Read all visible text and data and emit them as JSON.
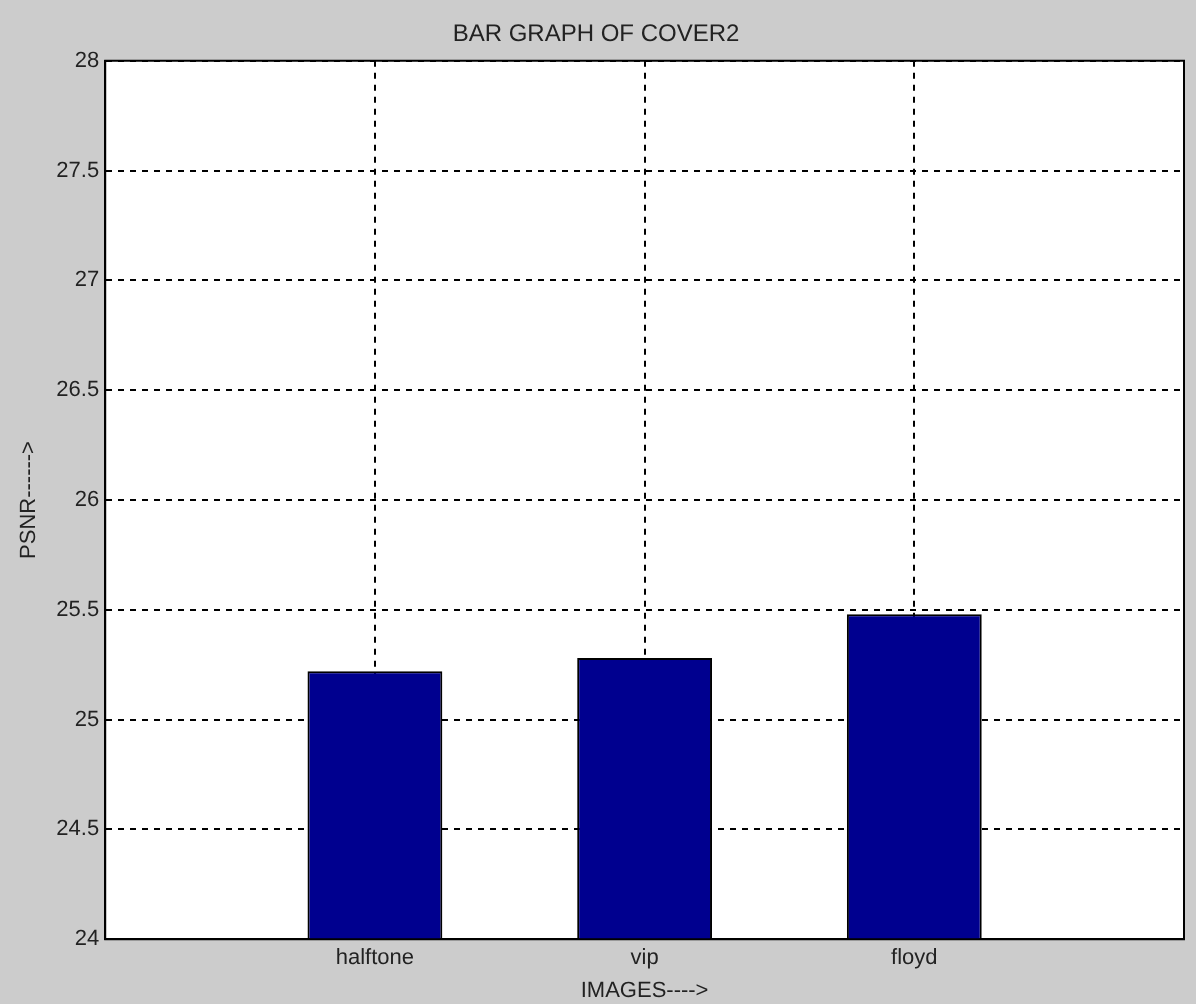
{
  "chart_data": {
    "type": "bar",
    "title": "BAR GRAPH OF COVER2",
    "xlabel": "IMAGES---->",
    "ylabel": "PSNR------>",
    "categories": [
      "halftone",
      "vip",
      "floyd"
    ],
    "values": [
      25.22,
      25.28,
      25.48
    ],
    "color": "#00008f",
    "ylim": [
      24,
      28
    ],
    "yticks": [
      24,
      24.5,
      25,
      25.5,
      26,
      26.5,
      27,
      27.5,
      28
    ],
    "grid": true
  }
}
